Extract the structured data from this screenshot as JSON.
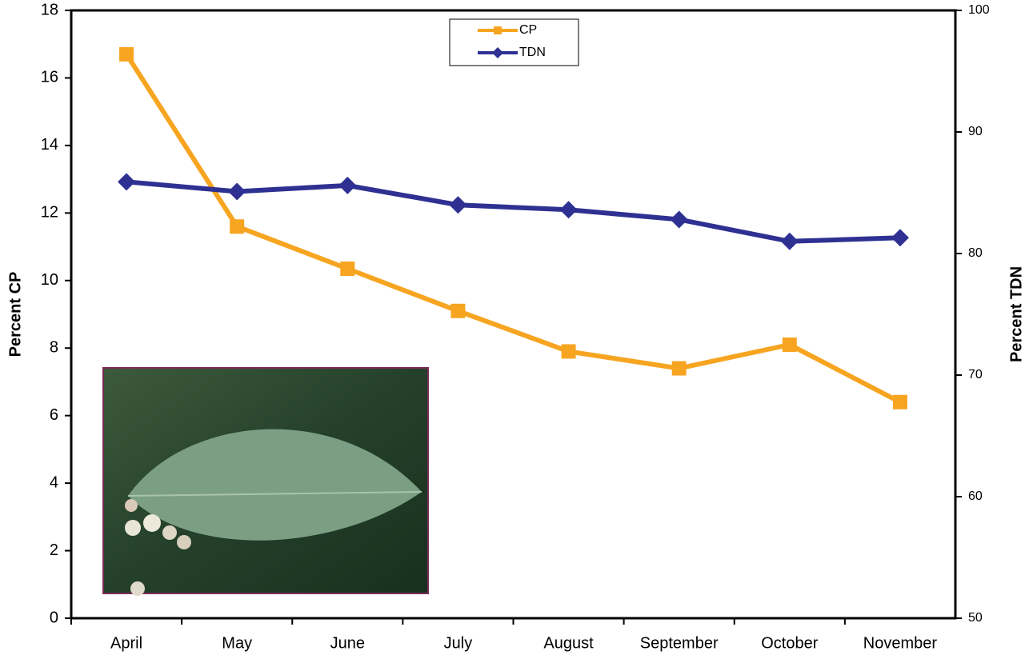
{
  "chart_data": {
    "type": "line",
    "categories": [
      "April",
      "May",
      "June",
      "July",
      "August",
      "September",
      "October",
      "November"
    ],
    "series": [
      {
        "name": "CP",
        "color": "#f7a521",
        "marker": "square",
        "values": [
          16.7,
          11.6,
          10.35,
          9.1,
          7.9,
          7.4,
          8.1,
          6.4
        ]
      },
      {
        "name": "TDN",
        "color": "#2e3192",
        "marker": "diamond",
        "axis": "y2",
        "values": [
          85.9,
          85.1,
          85.6,
          84.0,
          83.6,
          82.8,
          81.0,
          81.3
        ]
      }
    ],
    "ylabel": "Percent CP",
    "y2label": "Percent TDN",
    "ylim": [
      0,
      18
    ],
    "yticks": [
      0,
      2,
      4,
      6,
      8,
      10,
      12,
      14,
      16,
      18
    ],
    "y2lim": [
      50,
      100
    ],
    "y2ticks": [
      50,
      60,
      70,
      80,
      90,
      100
    ],
    "legend": "top"
  }
}
